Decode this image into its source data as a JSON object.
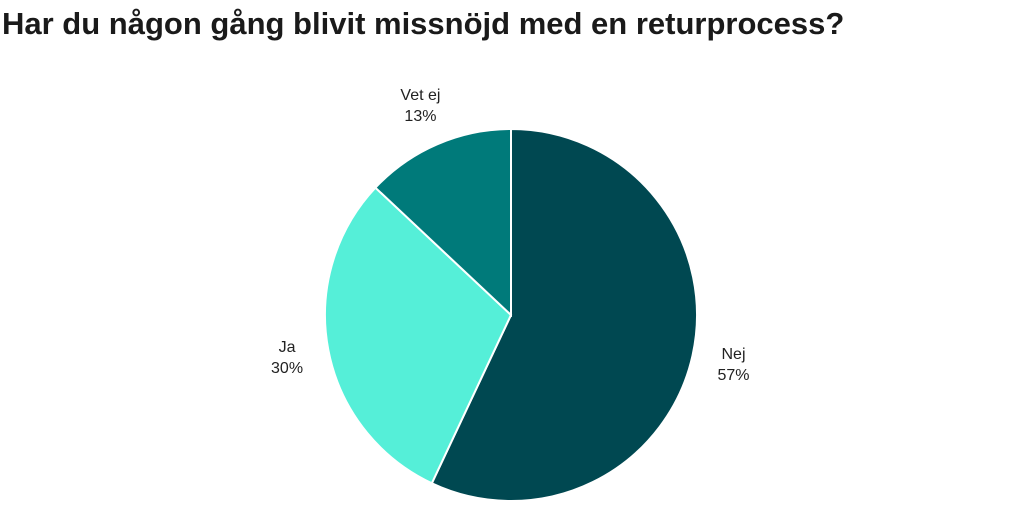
{
  "chart_data": {
    "type": "pie",
    "title": "Har du någon gång blivit missnöjd med en returprocess?",
    "categories": [
      "Nej",
      "Ja",
      "Vet ej"
    ],
    "values": [
      57,
      30,
      13
    ],
    "value_labels": [
      "57%",
      "30%",
      "13%"
    ],
    "colors": [
      "#004851",
      "#55efd8",
      "#007a7a"
    ]
  }
}
